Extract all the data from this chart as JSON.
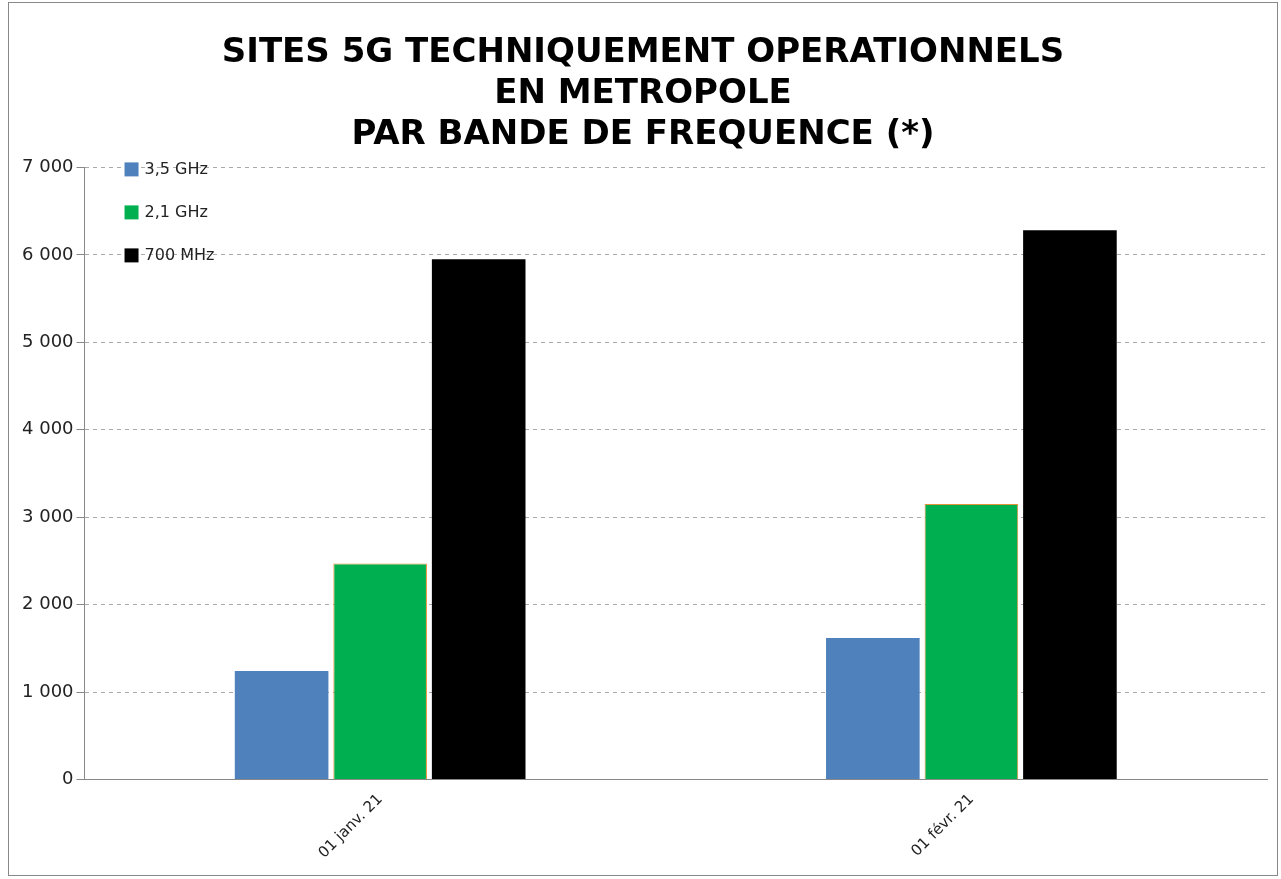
{
  "chart_data": {
    "type": "bar",
    "title": [
      "SITES 5G TECHNIQUEMENT OPERATIONNELS",
      "EN METROPOLE",
      "PAR BANDE DE FREQUENCE (*)"
    ],
    "categories": [
      "01 janv. 21",
      "01 févr. 21"
    ],
    "series": [
      {
        "name": "3,5 GHz",
        "color": "#4f81bd",
        "values": [
          1240,
          1620
        ]
      },
      {
        "name": "2,1 GHz",
        "color": "#00b050",
        "values": [
          2470,
          3150
        ]
      },
      {
        "name": "700 MHz",
        "color": "#000000",
        "values": [
          5950,
          6280
        ]
      }
    ],
    "ylim": [
      0,
      7000
    ],
    "yticks": [
      0,
      {
        "value": 1000,
        "label": "1 000"
      },
      {
        "value": 2000,
        "label": "2 000"
      },
      {
        "value": 3000,
        "label": "3 000"
      },
      {
        "value": 4000,
        "label": "4 000"
      },
      {
        "value": 5000,
        "label": "5 000"
      },
      {
        "value": 6000,
        "label": "6 000"
      },
      {
        "value": 7000,
        "label": "7 000"
      }
    ],
    "grid": "y",
    "legend": "top left"
  }
}
